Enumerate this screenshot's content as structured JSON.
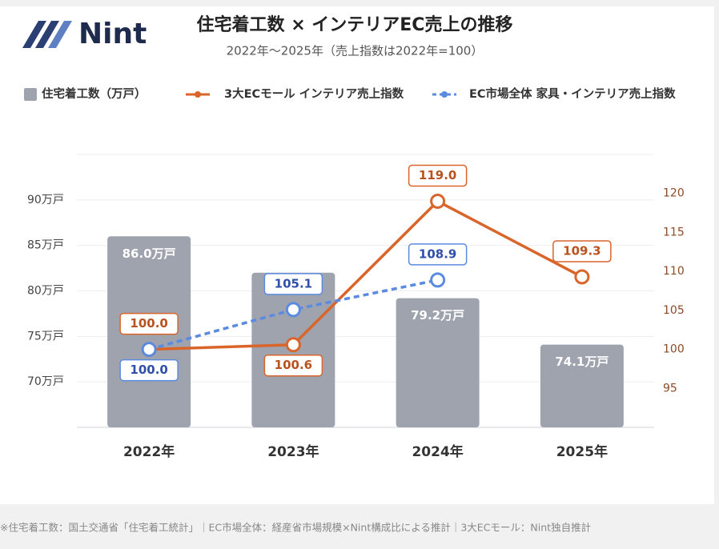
{
  "logo": "Nint",
  "chart_data": {
    "type": "bar-line",
    "title": "住宅着工数 × インテリアEC売上の推移",
    "subtitle": "2022年〜2025年（売上指数は2022年=100）",
    "categories": [
      "2022年",
      "2023年",
      "2024年",
      "2025年"
    ],
    "series": [
      {
        "name": "住宅着工数（万戸）",
        "type": "bar",
        "color": "#9ea3ae",
        "values": [
          86.0,
          82.0,
          79.2,
          74.1
        ],
        "value_labels": [
          "86.0万戸",
          null,
          "79.2万戸",
          "74.1万戸"
        ]
      },
      {
        "name": "3大ECモール インテリア売上指数",
        "type": "line",
        "axis": "y2",
        "color": "#d9652b",
        "dashed": false,
        "values": [
          100.0,
          100.6,
          119.0,
          109.3
        ],
        "value_labels": [
          "100.0",
          "100.6",
          "119.0",
          "109.3"
        ]
      },
      {
        "name": "EC市場全体 家具・インテリア売上指数",
        "type": "line",
        "axis": "y2",
        "color": "#5b8be0",
        "dashed": true,
        "values": [
          100.0,
          105.1,
          108.9,
          null
        ],
        "value_labels": [
          "100.0",
          "105.1",
          "108.9",
          null
        ]
      }
    ],
    "ylim": [
      65,
      95
    ],
    "yticks": [
      {
        "value": 70,
        "label": "70万戸"
      },
      {
        "value": 75,
        "label": "75万戸"
      },
      {
        "value": 80,
        "label": "80万戸"
      },
      {
        "value": 85,
        "label": "85万戸"
      },
      {
        "value": 90,
        "label": "90万戸"
      }
    ],
    "y2lim": [
      90,
      125
    ],
    "y2ticks": [
      95,
      100,
      105,
      110,
      115,
      120
    ],
    "grid": true,
    "note": "※住宅着工数：国土交通省「住宅着工統計」｜EC市場全体：経産省市場規模×Nint構成比による推計｜3大ECモール：Nint独自推計"
  }
}
